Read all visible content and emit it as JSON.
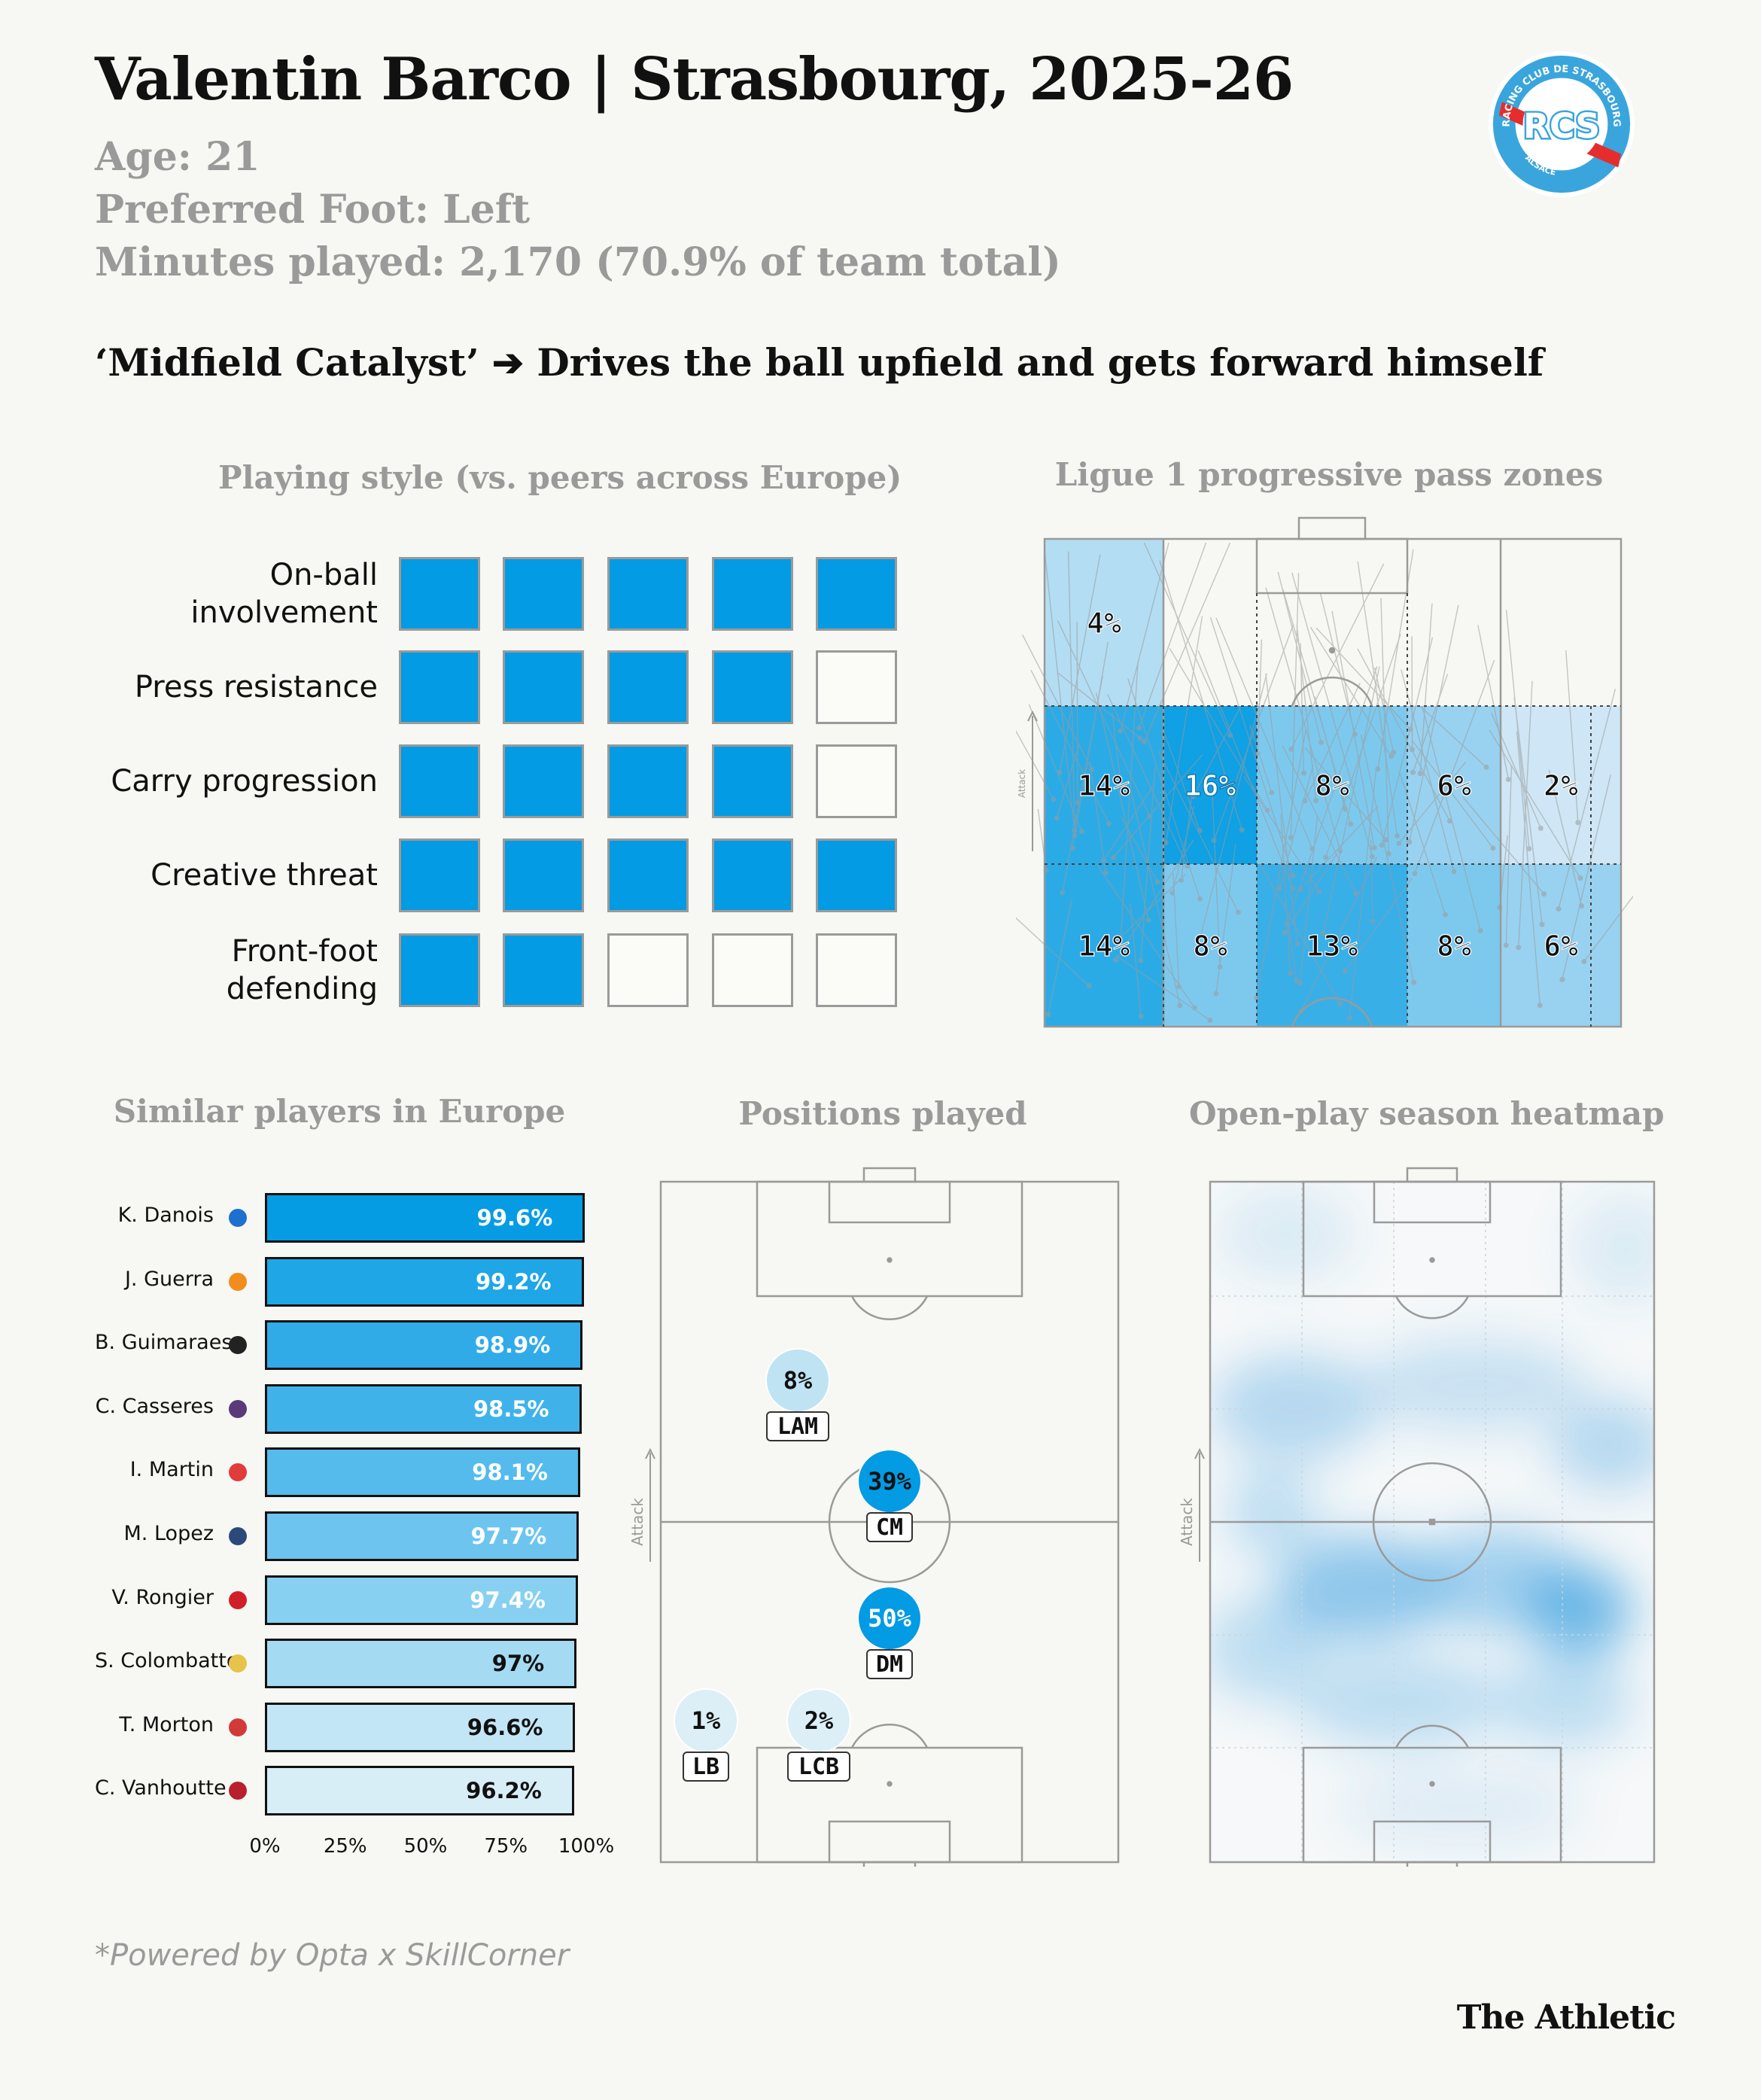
{
  "header": {
    "title": "Valentin Barco | Strasbourg, 2025-26",
    "age": "Age: 21",
    "foot": "Preferred Foot: Left",
    "minutes": "Minutes played: 2,170 (70.9% of team total)",
    "headline": "‘Midfield Catalyst’ ➔ Drives the ball upfield and gets forward himself"
  },
  "logo": {
    "text_top": "RACING CLUB DE STRASBOURG",
    "text_bottom": "ALSACE",
    "monogram": "RCS",
    "colors": {
      "ring": "#3aa5dc",
      "red": "#e52d2d",
      "white": "#ffffff"
    }
  },
  "colors": {
    "accent": "#039be3",
    "muted": "#9a9a9a",
    "background": "#f7f7f3"
  },
  "chart_data": [
    {
      "type": "table",
      "title": "Playing style (vs. peers across Europe)",
      "max": 5,
      "rows": [
        {
          "label": "On-ball involvement",
          "lines": [
            "On-ball",
            "involvement"
          ],
          "value": 5
        },
        {
          "label": "Press resistance",
          "lines": [
            "Press resistance"
          ],
          "value": 4
        },
        {
          "label": "Carry progression",
          "lines": [
            "Carry progression"
          ],
          "value": 4
        },
        {
          "label": "Creative threat",
          "lines": [
            "Creative threat"
          ],
          "value": 5
        },
        {
          "label": "Front-foot defending",
          "lines": [
            "Front-foot",
            "defending"
          ],
          "value": 2
        }
      ]
    },
    {
      "type": "heatmap",
      "title": "Ligue 1 progressive pass zones",
      "axis_label": "Attack",
      "zones": [
        {
          "row": 0,
          "col": 0,
          "value": 4,
          "label": "4%"
        },
        {
          "row": 1,
          "col": 0,
          "value": 14,
          "label": "14%"
        },
        {
          "row": 1,
          "col": 1,
          "value": 16,
          "label": "16%"
        },
        {
          "row": 1,
          "col": 2,
          "value": 8,
          "label": "8%"
        },
        {
          "row": 1,
          "col": 3,
          "value": 6,
          "label": "6%"
        },
        {
          "row": 1,
          "col": 4,
          "value": 2,
          "label": "2%"
        },
        {
          "row": 2,
          "col": 0,
          "value": 14,
          "label": "14%"
        },
        {
          "row": 2,
          "col": 1,
          "value": 8,
          "label": "8%"
        },
        {
          "row": 2,
          "col": 2,
          "value": 13,
          "label": "13%"
        },
        {
          "row": 2,
          "col": 3,
          "value": 8,
          "label": "8%"
        },
        {
          "row": 2,
          "col": 4,
          "value": 6,
          "label": "6%"
        }
      ]
    },
    {
      "type": "bar",
      "title": "Similar players in Europe",
      "orientation": "horizontal",
      "xlim": [
        0,
        100
      ],
      "xticks": [
        "0%",
        "25%",
        "50%",
        "75%",
        "100%"
      ],
      "categories": [
        "K. Danois",
        "J. Guerra",
        "B. Guimaraes",
        "C. Casseres",
        "I. Martin",
        "M. Lopez",
        "V. Rongier",
        "S. Colombatto",
        "T. Morton",
        "C. Vanhoutte"
      ],
      "values": [
        99.6,
        99.2,
        98.9,
        98.5,
        98.1,
        97.7,
        97.4,
        97,
        96.6,
        96.2
      ],
      "labels": [
        "99.6%",
        "99.2%",
        "98.9%",
        "98.5%",
        "98.1%",
        "97.7%",
        "97.4%",
        "97%",
        "96.6%",
        "96.2%"
      ],
      "bar_colors": [
        "#059ce3",
        "#1ea6e6",
        "#31abe8",
        "#40b2ea",
        "#55bbec",
        "#6dc5ef",
        "#88d0f1",
        "#a4dbf3",
        "#c2e6f5",
        "#d8eef6"
      ],
      "badge_colors": [
        "#1f6fd0",
        "#f28c1e",
        "#222222",
        "#5a3a78",
        "#e23b3b",
        "#2b4a7a",
        "#d11f2a",
        "#e6c44a",
        "#d23a3a",
        "#b8202d"
      ]
    },
    {
      "type": "scatter",
      "title": "Positions played",
      "axis_label": "Attack",
      "positions": [
        {
          "name": "LAM",
          "value": 8,
          "label": "8%"
        },
        {
          "name": "CM",
          "value": 39,
          "label": "39%"
        },
        {
          "name": "DM",
          "value": 50,
          "label": "50%"
        },
        {
          "name": "LB",
          "value": 1,
          "label": "1%"
        },
        {
          "name": "LCB",
          "value": 2,
          "label": "2%"
        }
      ]
    },
    {
      "type": "heatmap",
      "title": "Open-play season heatmap",
      "axis_label": "Attack"
    }
  ],
  "footer": "*Powered by Opta x SkillCorner",
  "brand": "The Athletic"
}
